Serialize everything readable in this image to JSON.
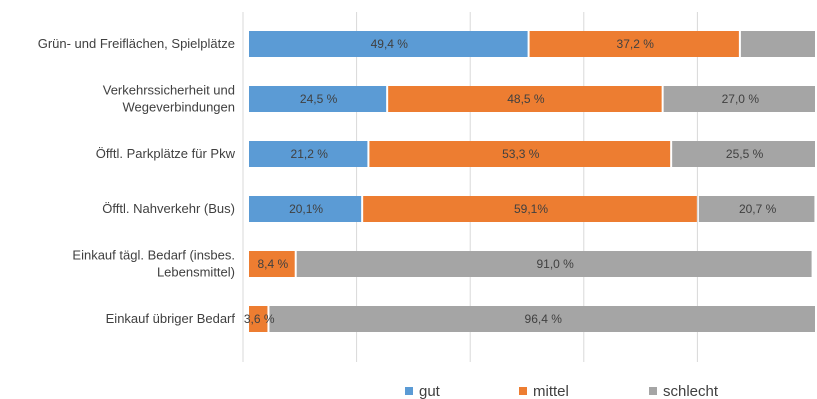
{
  "chart_data": {
    "type": "bar",
    "orientation": "horizontal",
    "stacked": true,
    "categories": [
      "Grün- und Freiflächen, Spielplätze",
      "Verkehrssicherheit und Wegeverbindungen",
      "Öfftl. Parkplätze für Pkw",
      "Öfftl. Nahverkehr (Bus)",
      "Einkauf tägl. Bedarf (insbes. Lebensmittel)",
      "Einkauf übriger Bedarf"
    ],
    "category_lines": [
      [
        "Grün- und Freiflächen, Spielplätze"
      ],
      [
        "Verkehrssicherheit und",
        "Wegeverbindungen"
      ],
      [
        "Öfftl. Parkplätze für Pkw"
      ],
      [
        "Öfftl. Nahverkehr (Bus)"
      ],
      [
        "Einkauf tägl. Bedarf (insbes.",
        "Lebensmittel)"
      ],
      [
        "Einkauf übriger Bedarf"
      ]
    ],
    "series": [
      {
        "name": "gut",
        "color": "#5b9bd5",
        "values": [
          49.4,
          24.5,
          21.2,
          20.1,
          0.0,
          0.0
        ],
        "labels": [
          "49,4 %",
          "24,5 %",
          "21,2 %",
          "20,1%",
          "",
          ""
        ]
      },
      {
        "name": "mittel",
        "color": "#ed7d31",
        "values": [
          37.2,
          48.5,
          53.3,
          59.1,
          8.4,
          3.6
        ],
        "labels": [
          "37,2 %",
          "48,5 %",
          "53,3 %",
          "59,1%",
          "8,4 %",
          "3,6 %"
        ]
      },
      {
        "name": "schlecht",
        "color": "#a5a5a5",
        "values": [
          13.4,
          27.0,
          25.5,
          20.7,
          91.0,
          96.4
        ],
        "labels": [
          "",
          "27,0 %",
          "25,5 %",
          "20,7 %",
          "91,0 %",
          "96,4 %"
        ]
      }
    ],
    "xlim": [
      0,
      100
    ],
    "grid": true,
    "legend_position": "bottom"
  }
}
